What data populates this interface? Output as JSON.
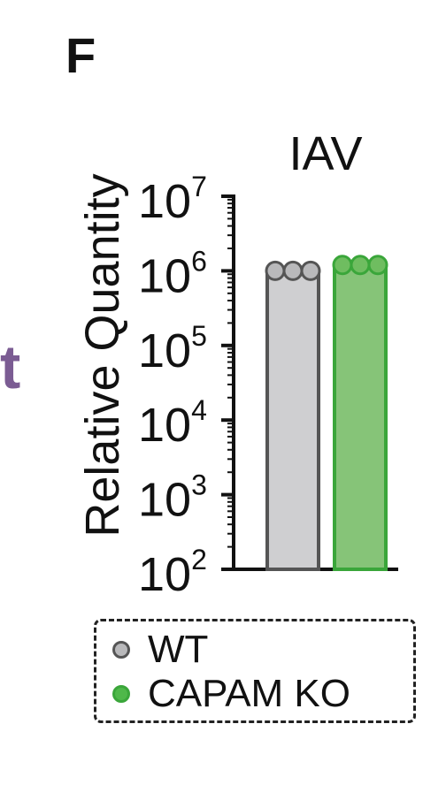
{
  "panel_label": "F",
  "cut_text": "t",
  "chart_data": {
    "type": "bar",
    "title": "IAV",
    "ylabel": "Relative Quantity",
    "xlabel": "",
    "yscale": "log",
    "ylim": [
      100,
      10000000
    ],
    "y_ticks": [
      {
        "base": "10",
        "exp": "7",
        "value": 10000000
      },
      {
        "base": "10",
        "exp": "6",
        "value": 1000000
      },
      {
        "base": "10",
        "exp": "5",
        "value": 100000
      },
      {
        "base": "10",
        "exp": "4",
        "value": 10000
      },
      {
        "base": "10",
        "exp": "3",
        "value": 1000
      },
      {
        "base": "10",
        "exp": "2",
        "value": 100
      }
    ],
    "categories": [
      "WT",
      "CAPAM KO"
    ],
    "values": [
      1000000,
      1200000
    ],
    "points": [
      [
        1000000,
        1000000,
        1000000
      ],
      [
        1200000,
        1200000,
        1200000
      ]
    ],
    "colors": {
      "WT": {
        "fill": "#cfcfd1",
        "stroke": "#555555",
        "point": "#b9b9bb"
      },
      "CAPAM KO": {
        "fill": "#86c478",
        "stroke": "#3aa63a",
        "point": "#6fbd60"
      }
    },
    "legend": {
      "position": "bottom",
      "entries": [
        {
          "name": "WT",
          "color": "#b9b9bb",
          "edge": "#555555"
        },
        {
          "name": "CAPAM KO",
          "color": "#4fb84a",
          "edge": "#3aa63a"
        }
      ]
    },
    "grid": false
  }
}
